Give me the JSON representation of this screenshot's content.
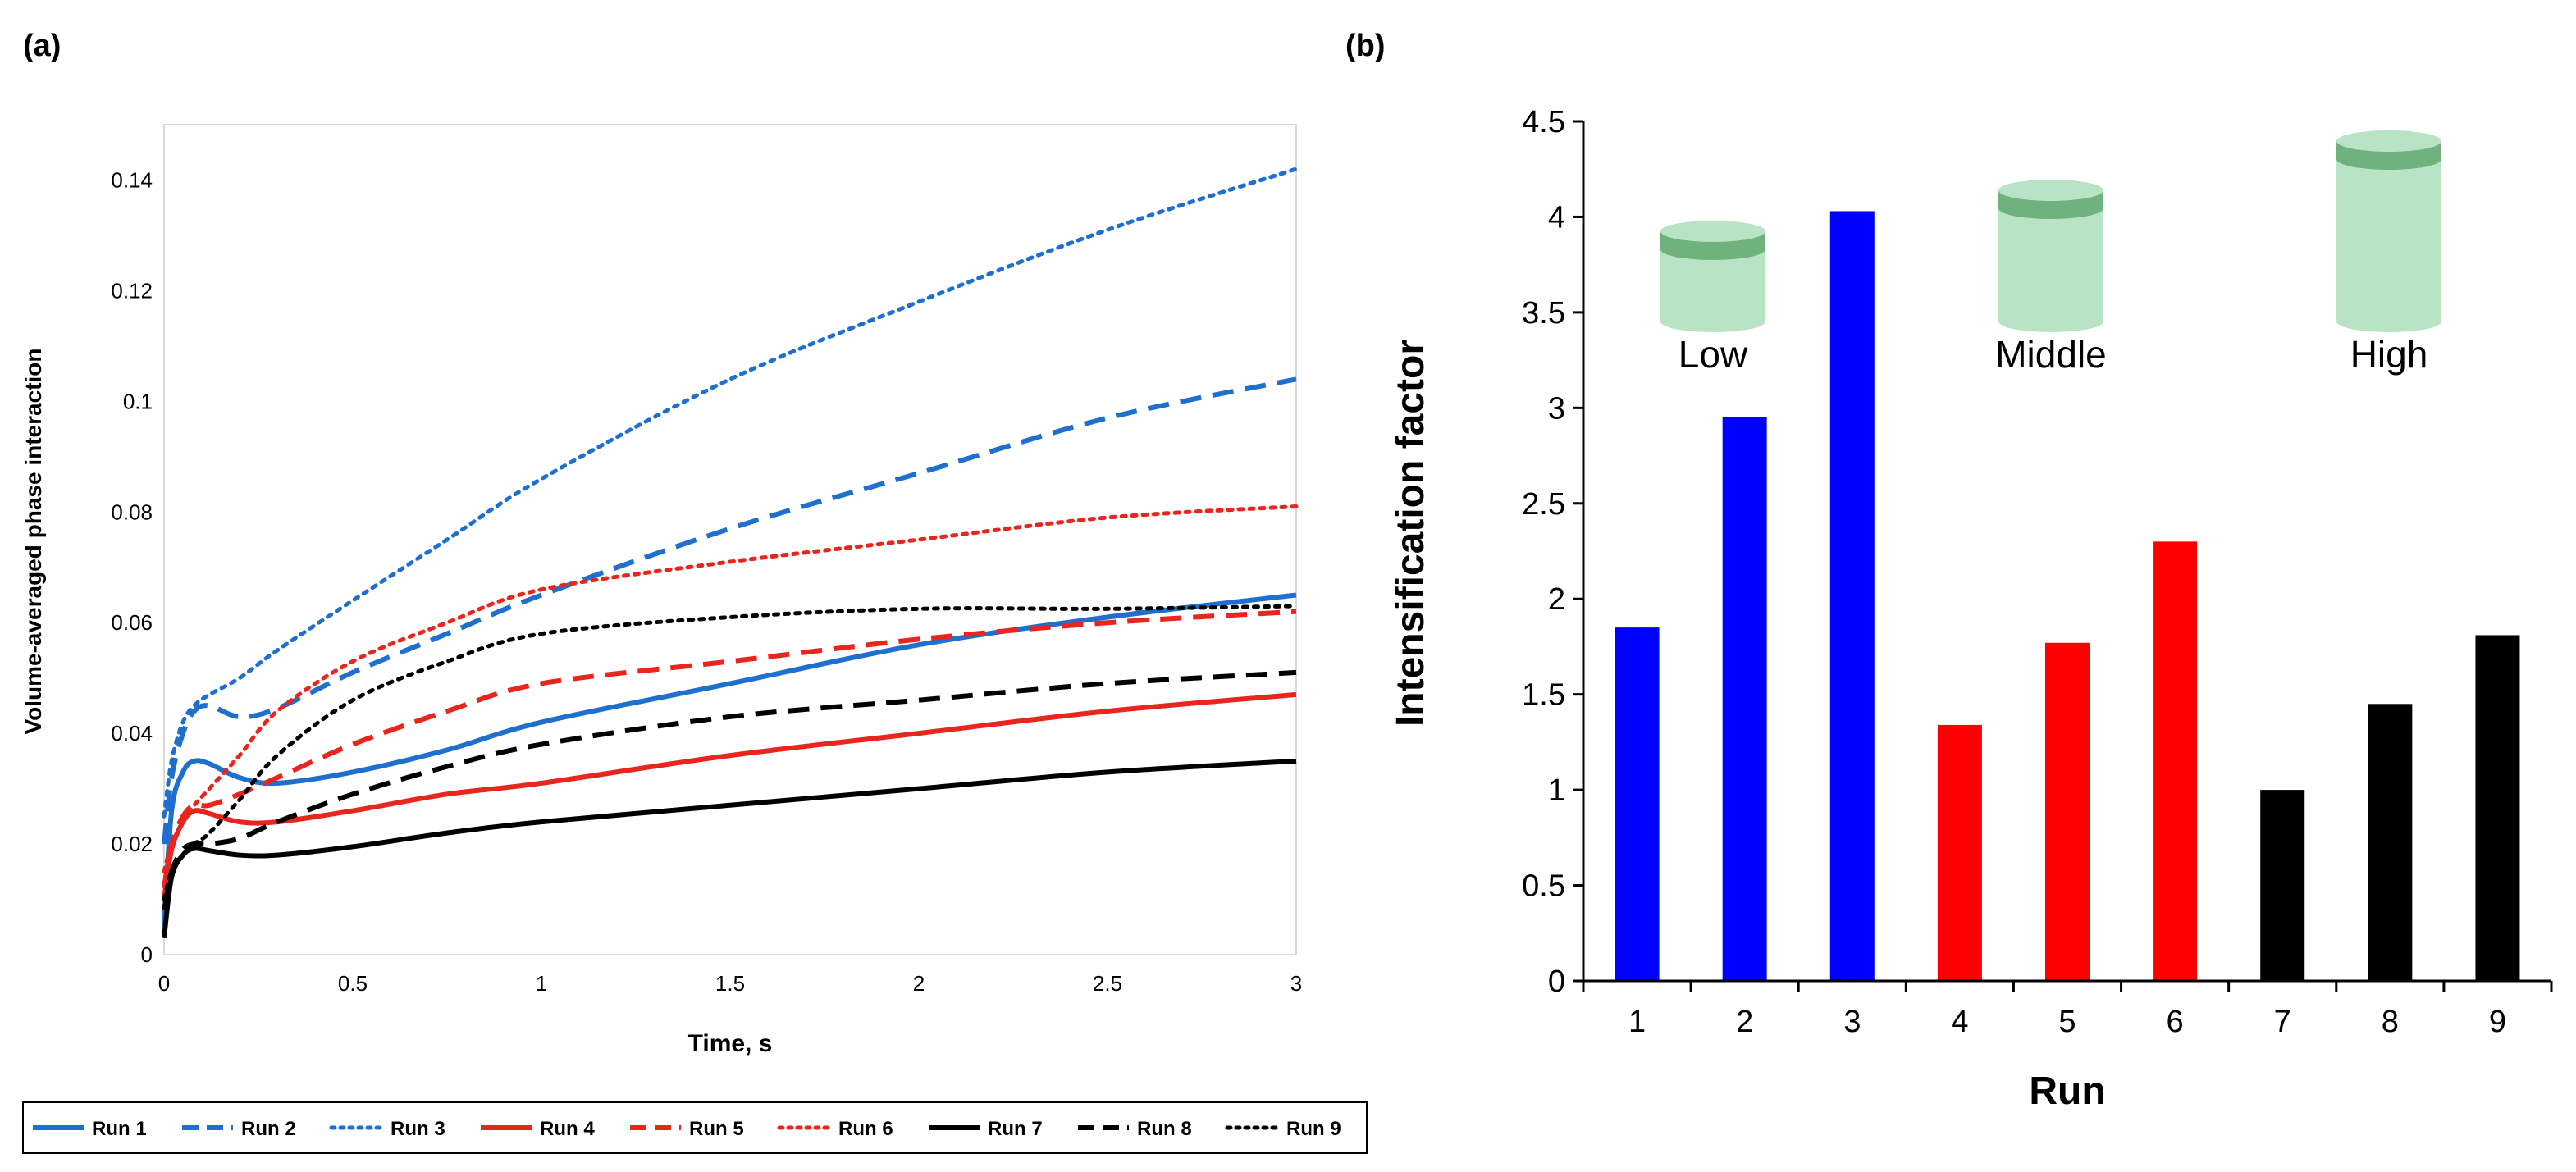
{
  "colors": {
    "blue": "#1f6fcf",
    "red": "#e8261e",
    "black": "#000000",
    "bar_blue": "#0000ff",
    "bar_red": "#ff0000",
    "bar_black": "#000000",
    "cyl_body": "#b8e3c4",
    "cyl_band": "#6fb27e"
  },
  "chart_data": [
    {
      "panel": "(a)",
      "type": "line",
      "xlabel": "Time, s",
      "ylabel": "Volume-averaged phase interaction",
      "xlim": [
        0,
        3
      ],
      "ylim": [
        0,
        0.15
      ],
      "xticks": [
        "0",
        "0.5",
        "1",
        "1.5",
        "2",
        "2.5",
        "3"
      ],
      "yticks": [
        "0",
        "0.02",
        "0.04",
        "0.06",
        "0.08",
        "0.1",
        "0.12",
        "0.14"
      ],
      "legend_position": "bottom",
      "series": [
        {
          "name": "Run 1",
          "color": "blue",
          "dash": "solid",
          "points": [
            [
              0,
              0.005
            ],
            [
              0.02,
              0.026
            ],
            [
              0.05,
              0.033
            ],
            [
              0.08,
              0.035
            ],
            [
              0.12,
              0.0345
            ],
            [
              0.2,
              0.032
            ],
            [
              0.3,
              0.031
            ],
            [
              0.5,
              0.033
            ],
            [
              0.75,
              0.037
            ],
            [
              1,
              0.042
            ],
            [
              1.5,
              0.049
            ],
            [
              2,
              0.056
            ],
            [
              2.5,
              0.061
            ],
            [
              3,
              0.065
            ]
          ]
        },
        {
          "name": "Run 2",
          "color": "blue",
          "dash": "dash",
          "points": [
            [
              0,
              0.02
            ],
            [
              0.02,
              0.032
            ],
            [
              0.05,
              0.04
            ],
            [
              0.08,
              0.044
            ],
            [
              0.12,
              0.045
            ],
            [
              0.2,
              0.043
            ],
            [
              0.3,
              0.0445
            ],
            [
              0.5,
              0.051
            ],
            [
              0.75,
              0.058
            ],
            [
              1,
              0.065
            ],
            [
              1.5,
              0.077
            ],
            [
              2,
              0.087
            ],
            [
              2.5,
              0.097
            ],
            [
              3,
              0.104
            ]
          ]
        },
        {
          "name": "Run 3",
          "color": "blue",
          "dash": "dot",
          "points": [
            [
              0,
              0.025
            ],
            [
              0.02,
              0.035
            ],
            [
              0.05,
              0.042
            ],
            [
              0.08,
              0.045
            ],
            [
              0.12,
              0.047
            ],
            [
              0.2,
              0.05
            ],
            [
              0.3,
              0.055
            ],
            [
              0.5,
              0.064
            ],
            [
              0.75,
              0.075
            ],
            [
              1,
              0.086
            ],
            [
              1.5,
              0.104
            ],
            [
              2,
              0.118
            ],
            [
              2.5,
              0.131
            ],
            [
              3,
              0.142
            ]
          ]
        },
        {
          "name": "Run 4",
          "color": "red",
          "dash": "solid",
          "points": [
            [
              0,
              0.01
            ],
            [
              0.02,
              0.019
            ],
            [
              0.05,
              0.024
            ],
            [
              0.08,
              0.026
            ],
            [
              0.12,
              0.0255
            ],
            [
              0.2,
              0.024
            ],
            [
              0.3,
              0.024
            ],
            [
              0.5,
              0.026
            ],
            [
              0.75,
              0.029
            ],
            [
              1,
              0.031
            ],
            [
              1.5,
              0.036
            ],
            [
              2,
              0.04
            ],
            [
              2.5,
              0.044
            ],
            [
              3,
              0.047
            ]
          ]
        },
        {
          "name": "Run 5",
          "color": "red",
          "dash": "dash",
          "points": [
            [
              0,
              0.012
            ],
            [
              0.02,
              0.02
            ],
            [
              0.05,
              0.025
            ],
            [
              0.08,
              0.027
            ],
            [
              0.12,
              0.027
            ],
            [
              0.2,
              0.029
            ],
            [
              0.3,
              0.032
            ],
            [
              0.5,
              0.038
            ],
            [
              0.75,
              0.044
            ],
            [
              1,
              0.049
            ],
            [
              1.5,
              0.053
            ],
            [
              2,
              0.057
            ],
            [
              2.5,
              0.06
            ],
            [
              3,
              0.062
            ]
          ]
        },
        {
          "name": "Run 6",
          "color": "red",
          "dash": "dot",
          "points": [
            [
              0,
              0.015
            ],
            [
              0.02,
              0.02
            ],
            [
              0.05,
              0.024
            ],
            [
              0.08,
              0.027
            ],
            [
              0.12,
              0.03
            ],
            [
              0.2,
              0.036
            ],
            [
              0.3,
              0.044
            ],
            [
              0.5,
              0.053
            ],
            [
              0.75,
              0.06
            ],
            [
              1,
              0.066
            ],
            [
              1.5,
              0.071
            ],
            [
              2,
              0.075
            ],
            [
              2.5,
              0.079
            ],
            [
              3,
              0.081
            ]
          ]
        },
        {
          "name": "Run 7",
          "color": "black",
          "dash": "solid",
          "points": [
            [
              0,
              0.003
            ],
            [
              0.02,
              0.014
            ],
            [
              0.05,
              0.018
            ],
            [
              0.08,
              0.0192
            ],
            [
              0.12,
              0.0188
            ],
            [
              0.2,
              0.018
            ],
            [
              0.3,
              0.018
            ],
            [
              0.5,
              0.0195
            ],
            [
              0.75,
              0.022
            ],
            [
              1,
              0.024
            ],
            [
              1.5,
              0.027
            ],
            [
              2,
              0.03
            ],
            [
              2.5,
              0.033
            ],
            [
              3,
              0.035
            ]
          ]
        },
        {
          "name": "Run 8",
          "color": "black",
          "dash": "dash",
          "points": [
            [
              0,
              0.008
            ],
            [
              0.02,
              0.015
            ],
            [
              0.05,
              0.019
            ],
            [
              0.08,
              0.02
            ],
            [
              0.12,
              0.02
            ],
            [
              0.2,
              0.021
            ],
            [
              0.3,
              0.024
            ],
            [
              0.5,
              0.029
            ],
            [
              0.75,
              0.034
            ],
            [
              1,
              0.038
            ],
            [
              1.5,
              0.043
            ],
            [
              2,
              0.046
            ],
            [
              2.5,
              0.049
            ],
            [
              3,
              0.051
            ]
          ]
        },
        {
          "name": "Run 9",
          "color": "black",
          "dash": "dot",
          "points": [
            [
              0,
              0.01
            ],
            [
              0.02,
              0.015
            ],
            [
              0.05,
              0.018
            ],
            [
              0.08,
              0.02
            ],
            [
              0.12,
              0.022
            ],
            [
              0.2,
              0.028
            ],
            [
              0.3,
              0.036
            ],
            [
              0.5,
              0.046
            ],
            [
              0.75,
              0.053
            ],
            [
              1,
              0.058
            ],
            [
              1.5,
              0.061
            ],
            [
              2,
              0.0625
            ],
            [
              2.5,
              0.0625
            ],
            [
              3,
              0.063
            ]
          ]
        }
      ]
    },
    {
      "panel": "(b)",
      "type": "bar",
      "xlabel": "Run",
      "ylabel": "Intensification factor",
      "ylim": [
        0,
        4.5
      ],
      "yticks": [
        "0",
        "0.5",
        "1",
        "1.5",
        "2",
        "2.5",
        "3",
        "3.5",
        "4",
        "4.5"
      ],
      "categories": [
        "1",
        "2",
        "3",
        "4",
        "5",
        "6",
        "7",
        "8",
        "9"
      ],
      "values": [
        1.85,
        2.95,
        4.03,
        1.34,
        1.77,
        2.3,
        1.0,
        1.45,
        1.81
      ],
      "bar_colors": [
        "bar_blue",
        "bar_blue",
        "bar_blue",
        "bar_red",
        "bar_red",
        "bar_red",
        "bar_black",
        "bar_black",
        "bar_black"
      ],
      "annotations": [
        {
          "label": "Low",
          "level": "low"
        },
        {
          "label": "Middle",
          "level": "middle"
        },
        {
          "label": "High",
          "level": "high"
        }
      ]
    }
  ]
}
